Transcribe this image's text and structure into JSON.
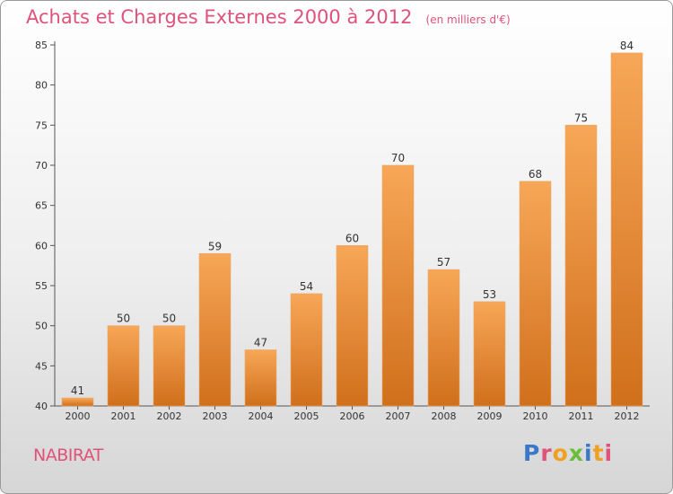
{
  "header": {
    "title": "Achats et Charges Externes 2000 à 2012",
    "unit_note": "(en milliers d'€)"
  },
  "footer": {
    "commune": "NABIRAT",
    "brand_letters": [
      "P",
      "r",
      "o",
      "x",
      "i",
      "t",
      "i"
    ]
  },
  "colors": {
    "title": "#e0527a",
    "bar_top": "#f7a757",
    "bar_bottom": "#d06f1c",
    "brand": [
      "#3a78c9",
      "#e0527a",
      "#f0a020",
      "#6abf3a",
      "#3a78c9",
      "#f0a020",
      "#e0527a"
    ]
  },
  "chart_data": {
    "type": "bar",
    "categories": [
      "2000",
      "2001",
      "2002",
      "2003",
      "2004",
      "2005",
      "2006",
      "2007",
      "2008",
      "2009",
      "2010",
      "2011",
      "2012"
    ],
    "values": [
      41,
      50,
      50,
      59,
      47,
      54,
      60,
      70,
      57,
      53,
      68,
      75,
      84
    ],
    "ylim": [
      40,
      85
    ],
    "yticks": [
      40,
      45,
      50,
      55,
      60,
      65,
      70,
      75,
      80,
      85
    ],
    "grid": false,
    "legend": "none"
  }
}
